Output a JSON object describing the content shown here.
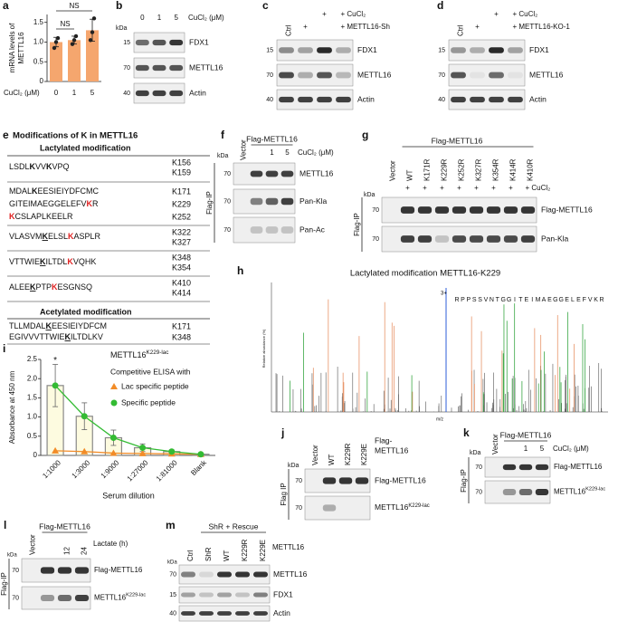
{
  "panel_letters": [
    "a",
    "b",
    "c",
    "d",
    "e",
    "f",
    "g",
    "h",
    "i",
    "j",
    "k",
    "l",
    "m"
  ],
  "chart_data": [
    {
      "type": "bar",
      "ylabel": [
        "mRNA levels of",
        "METTL16"
      ],
      "xlabel": "CuCl₂ (μM)",
      "categories": [
        "0",
        "1",
        "5"
      ],
      "values": [
        1.0,
        1.05,
        1.3
      ],
      "errors": [
        0.12,
        0.1,
        0.28
      ],
      "points": [
        [
          0.85,
          1.0,
          1.1
        ],
        [
          0.95,
          1.05,
          1.15
        ],
        [
          1.05,
          1.25,
          1.6
        ]
      ],
      "color": "#f5a66e",
      "ylim": [
        0,
        1.7
      ],
      "yticks": [
        0,
        0.5,
        {
          "value": 1,
          "label": "1.0"
        },
        1.5
      ],
      "annotations": [
        "NS",
        "NS"
      ]
    },
    {
      "type": "bar-line",
      "title": {
        "text": "METTL16",
        "sup": "K229-lac"
      },
      "subtitle": "Competitive ELISA with",
      "xlabel": "Serum dilution",
      "ylabel": "Absorbance at 450 nm",
      "categories": [
        "1:1000",
        "1:3000",
        "1:9000",
        "1:27000",
        "1:81000",
        "Blank"
      ],
      "bar_color": "#fdfbe0",
      "bar_edge": "#888888",
      "series": [
        {
          "name": "Lac specific peptide",
          "color": "#f28c28",
          "marker": "triangle",
          "values": [
            0.12,
            0.1,
            0.06,
            0.05,
            0.04,
            0.03
          ]
        },
        {
          "name": "Specific peptide",
          "color": "#33bb33",
          "marker": "circle",
          "values": [
            1.82,
            1.02,
            0.46,
            0.2,
            0.1,
            0.03
          ],
          "errors": [
            0.55,
            0.35,
            0.2,
            0.1,
            0.04,
            0.02
          ]
        }
      ],
      "annotations": [
        "*"
      ],
      "ylim": [
        0,
        2.5
      ],
      "yticks": [
        0,
        0.5,
        {
          "value": 1,
          "label": "1.0"
        },
        1.5,
        {
          "value": 2,
          "label": "2.0"
        },
        2.5
      ]
    }
  ],
  "blots": {
    "b": {
      "lanes": [
        "0",
        "1",
        "5"
      ],
      "treatment": "CuCl₂ (μM)",
      "kda_title": "kDa",
      "kda": [
        "15",
        "70",
        "40"
      ],
      "bands": [
        "FDX1",
        "METTL16",
        "Actin"
      ]
    },
    "c": {
      "lanes": [
        "Ctrl"
      ],
      "row1": [
        "+",
        "+ CuCl₂"
      ],
      "row2": [
        "+",
        "+ METTL16-Sh"
      ],
      "kda": [
        "15",
        "70",
        "40"
      ],
      "bands": [
        "FDX1",
        "METTL16",
        "Actin"
      ]
    },
    "d": {
      "lanes": [
        "Ctrl"
      ],
      "row1": [
        "+",
        "+ CuCl₂"
      ],
      "row2": [
        "+",
        "+ METTL16-KO-1"
      ],
      "kda": [
        "15",
        "70",
        "40"
      ],
      "bands": [
        "FDX1",
        "METTL16",
        "Actin"
      ]
    },
    "f": {
      "lanes": [
        "Vector"
      ],
      "header": "Flag-METTL16",
      "doses": [
        "1",
        "5"
      ],
      "treatment": "CuCl₂ (μM)",
      "kda_title": "kDa",
      "kda": [
        "70",
        "70",
        "70"
      ],
      "ip": "Flag-IP",
      "bands": [
        "METTL16",
        "Pan-Kla",
        "Pan-Ac"
      ]
    },
    "g": {
      "header": "Flag-METTL16",
      "lanes": [
        "Vector",
        "WT",
        "K171R",
        "K229R",
        "K252R",
        "K327R",
        "K354R",
        "K414R",
        "K410R"
      ],
      "plus": [
        "+",
        "+",
        "+",
        "+",
        "+",
        "+",
        "+",
        "+ CuCl₂"
      ],
      "kda_title": "kDa",
      "kda": [
        "70",
        "70"
      ],
      "ip": "Flag-IP",
      "bands": [
        "Flag-METTL16",
        "Pan-Kla"
      ]
    },
    "j": {
      "lanes": [
        "Vector",
        "WT",
        "K229R",
        "K229E"
      ],
      "header": [
        "Flag-",
        "METTL16"
      ],
      "kda_title": "kDa",
      "kda": [
        "70",
        "70"
      ],
      "ip": "Flag IP",
      "bands": [
        "Flag-METTL16",
        {
          "text": "METTL16",
          "sup": "K229-lac"
        }
      ]
    },
    "k": {
      "header": "Flag-METTL16",
      "lanes": [
        "Vector"
      ],
      "doses": [
        "1",
        "5"
      ],
      "treatment": "CuCl₂ (μM)",
      "kda_title": "kDa",
      "kda": [
        "70",
        "70"
      ],
      "ip": "Flag-IP",
      "bands": [
        "Flag-METTL16",
        {
          "text": "METTL16",
          "sup": "K229-lac"
        }
      ]
    },
    "l": {
      "lanes": [
        "Vector"
      ],
      "header": "Flag-METTL16",
      "doses": [
        "12",
        "24"
      ],
      "treatment": "Lactate (h)",
      "kda_title": "kDa",
      "kda": [
        "70",
        "70"
      ],
      "ip": "Flag-IP",
      "bands": [
        "Flag-METTL16",
        {
          "text": "METTL16",
          "sup": "K229-lac"
        }
      ]
    },
    "m": {
      "header": "ShR + Rescue",
      "lanes": [
        "Ctrl",
        "ShR",
        "WT",
        "K229R",
        "K229E"
      ],
      "gene": "METTL16",
      "kda_title": "kDa",
      "kda": [
        "70",
        "15",
        "40"
      ],
      "bands": [
        "METTL16",
        "FDX1",
        "Actin"
      ]
    }
  },
  "modifications": {
    "title": "Modifications of K in METTL16",
    "lactylated": {
      "title": "Lactylated modification",
      "groups": [
        {
          "sequences": [
            [
              {
                "text": "LSDL"
              },
              {
                "text": "K",
                "style": "bold"
              },
              {
                "text": "VV"
              },
              {
                "text": "K",
                "style": "bold"
              },
              {
                "text": "VPQ"
              }
            ]
          ],
          "sites": [
            {
              "text": "K156"
            },
            {
              "text": "K159"
            }
          ]
        },
        {
          "sequences": [
            [
              {
                "text": "MDAL"
              },
              {
                "text": "K",
                "style": "bold"
              },
              {
                "text": "EESIEIYDFCMC"
              }
            ],
            [
              {
                "text": "GITEIMAEGGELEFV"
              },
              {
                "text": "K",
                "style": "bold red"
              },
              {
                "text": "R"
              }
            ],
            [
              {
                "text": "K",
                "style": "bold red"
              },
              {
                "text": "CSLAPLKEELR"
              }
            ]
          ],
          "sites": [
            {
              "text": "K171",
              "style": "red"
            },
            {
              "text": "K229",
              "style": "red"
            },
            {
              "text": "K252",
              "style": "red"
            }
          ]
        },
        {
          "sequences": [
            [
              {
                "text": "VLASVM"
              },
              {
                "text": "K",
                "style": "bold ul"
              },
              {
                "text": "ELSL"
              },
              {
                "text": "K",
                "style": "bold red"
              },
              {
                "text": "ASPLR"
              }
            ]
          ],
          "sites": [
            {
              "text": "K322"
            },
            {
              "text": "K327",
              "style": "red"
            }
          ]
        },
        {
          "sequences": [
            [
              {
                "text": "VTTWIE"
              },
              {
                "text": "K",
                "style": "bold ul"
              },
              {
                "text": "ILTDL"
              },
              {
                "text": "K",
                "style": "bold red"
              },
              {
                "text": "VQHK"
              }
            ]
          ],
          "sites": [
            {
              "text": "K348"
            },
            {
              "text": "K354",
              "style": "red"
            }
          ]
        },
        {
          "sequences": [
            [
              {
                "text": "ALEE"
              },
              {
                "text": "K",
                "style": "bold ul"
              },
              {
                "text": "PTP"
              },
              {
                "text": "K",
                "style": "bold red"
              },
              {
                "text": "ESGNSQ"
              }
            ]
          ],
          "sites": [
            {
              "text": "K410"
            },
            {
              "text": "K414",
              "style": "red"
            }
          ]
        }
      ]
    },
    "acetylated": {
      "title": "Acetylated modification",
      "rows": [
        {
          "sequence": [
            {
              "text": "TLLMDAL"
            },
            {
              "text": "K",
              "style": "bold ul"
            },
            {
              "text": "EESIEIYDFCM"
            }
          ],
          "site": {
            "text": "K171"
          }
        },
        {
          "sequence": [
            {
              "text": "EGIVVVTTWIE"
            },
            {
              "text": "K",
              "style": "bold ul"
            },
            {
              "text": "ILTDLKV"
            }
          ],
          "site": {
            "text": "K348"
          }
        }
      ]
    }
  },
  "spectrum": {
    "title": "Lactylated modification METTL16-K229",
    "peptide": [
      "R",
      "P",
      "P",
      "S",
      "S",
      "V",
      "N",
      "T",
      "G",
      "G",
      "I",
      "T",
      "E",
      "I",
      "M",
      "A",
      "E",
      "G",
      "G",
      "E",
      "L",
      "E",
      "F",
      "V",
      "K",
      "R"
    ],
    "charge": "3+",
    "ylabel": "Relative abundance (%)",
    "xlabel": "m/z"
  }
}
